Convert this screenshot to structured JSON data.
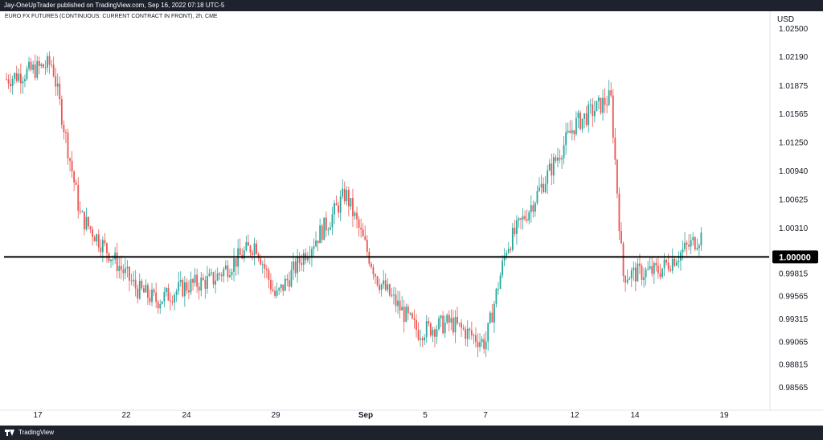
{
  "header": {
    "publisher_text": "Jay-OneUpTrader published on TradingView.com, Sep 16, 2022 07:18 UTC-5"
  },
  "footer": {
    "brand": "TradingView",
    "logo_icon": "tradingview-logo-icon"
  },
  "chart_data": {
    "type": "candlestick",
    "title": "EURO FX FUTURES (CONTINUOUS: CURRENT CONTRACT IN FRONT), 2h, CME",
    "currency": "USD",
    "colors": {
      "up": "#26a69a",
      "down": "#ef5350",
      "axis_text": "#131722",
      "level_line": "#000000"
    },
    "y_ticks": [
      "1.02500",
      "1.02190",
      "1.01875",
      "1.01565",
      "1.01250",
      "1.00940",
      "1.00625",
      "1.00310",
      "0.99815",
      "0.99565",
      "0.99315",
      "0.99065",
      "0.98815",
      "0.98565"
    ],
    "x_ticks": [
      "17",
      "22",
      "24",
      "29",
      "Sep",
      "5",
      "7",
      "12",
      "14",
      "19"
    ],
    "ylim": [
      0.9845,
      1.0262
    ],
    "horizontal_line": {
      "value": 1.0,
      "label": "1.00000"
    },
    "hidden_tick": "1.00000",
    "path": [
      [
        "17",
        1.0195
      ],
      [
        "18",
        1.0212
      ],
      [
        "19",
        1.0045
      ],
      [
        "22",
        0.9965
      ],
      [
        "23",
        0.9952
      ],
      [
        "24",
        0.9968
      ],
      [
        "25",
        0.9975
      ],
      [
        "26",
        1.0015
      ],
      [
        "29",
        0.9955
      ],
      [
        "30",
        1.0005
      ],
      [
        "31",
        1.004
      ],
      [
        "Sep",
        1.007
      ],
      [
        "Sep-2",
        0.9975
      ],
      [
        "5",
        0.9918
      ],
      [
        "6",
        0.9928
      ],
      [
        "7",
        0.9905
      ],
      [
        "8",
        1.001
      ],
      [
        "9",
        1.0055
      ],
      [
        "12",
        1.0145
      ],
      [
        "13",
        1.0175
      ],
      [
        "14",
        0.998
      ],
      [
        "15",
        0.9985
      ],
      [
        "16",
        1.0025
      ]
    ]
  }
}
